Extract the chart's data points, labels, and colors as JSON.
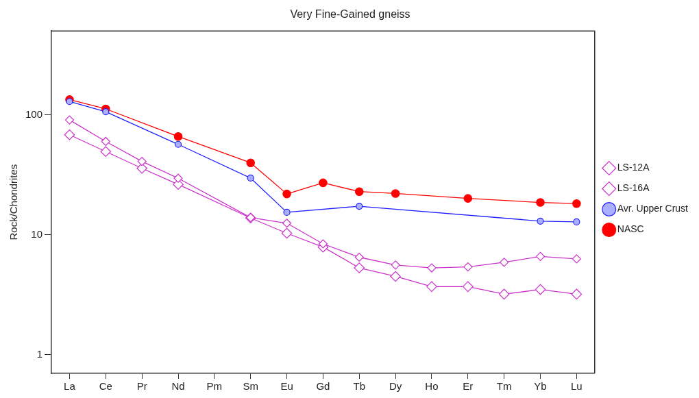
{
  "chart_data": {
    "type": "line",
    "title": "Very Fine-Gained gneiss",
    "ylabel": "Rock/Chondrites",
    "categories": [
      "La",
      "Ce",
      "Pr",
      "Nd",
      "Pm",
      "Sm",
      "Eu",
      "Gd",
      "Tb",
      "Dy",
      "Ho",
      "Er",
      "Tm",
      "Yb",
      "Lu"
    ],
    "series": [
      {
        "name": "LS-12A",
        "color": "#cc33cc",
        "marker": "diamond",
        "values": [
          90.6,
          60,
          40.9,
          29.6,
          null,
          13.9,
          12.5,
          8.4,
          6.5,
          5.6,
          5.3,
          5.4,
          5.9,
          6.6,
          6.3
        ]
      },
      {
        "name": "LS-16A",
        "color": "#cc33cc",
        "marker": "diamond",
        "values": [
          68.2,
          49.4,
          35.8,
          26.3,
          null,
          13.8,
          10.3,
          7.9,
          5.3,
          4.5,
          3.7,
          3.7,
          3.2,
          3.5,
          3.2
        ]
      },
      {
        "name": "Avr. Upper Crust",
        "color": "#2020ff",
        "marker": "circle",
        "values": [
          129,
          106,
          null,
          56.7,
          null,
          29.7,
          15.4,
          null,
          17.3,
          null,
          null,
          null,
          null,
          13.0,
          12.8
        ]
      },
      {
        "name": "NASC",
        "color": "#ff0000",
        "marker": "circle",
        "values": [
          134,
          112,
          null,
          66,
          null,
          39.8,
          21.9,
          27.1,
          22.9,
          22.1,
          null,
          20.1,
          null,
          18.6,
          18.2
        ]
      }
    ],
    "log": "y",
    "ylim": [
      0.7,
      500
    ],
    "yticks": [
      1,
      10,
      100
    ],
    "grid": false,
    "legend": "right",
    "line_style": "solid"
  }
}
